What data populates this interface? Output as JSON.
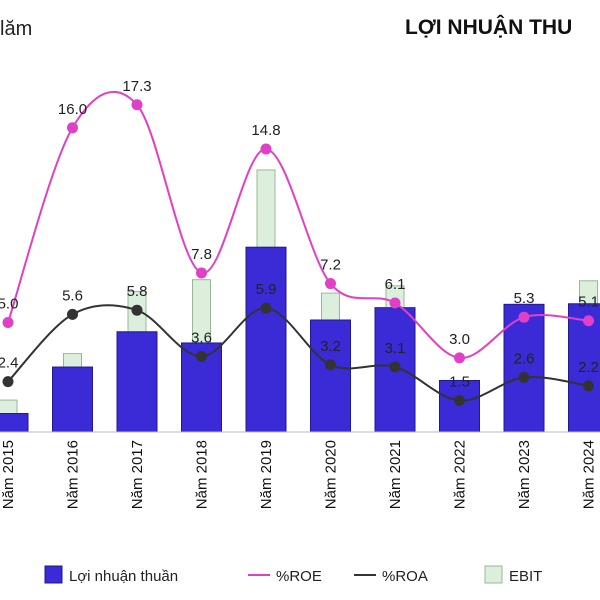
{
  "top_left_text": "lăm",
  "title": "LỢI NHUẬN THU",
  "colors": {
    "net_profit": "#3a2bd6",
    "net_profit_edge": "#1f1a8f",
    "ebit": "#dcefdc",
    "ebit_edge": "#9bb59b",
    "roe": "#e040c8",
    "roa": "#333333"
  },
  "chart_data": {
    "type": "bar",
    "categories": [
      "Năm 2015",
      "Năm 2016",
      "Năm 2017",
      "Năm 2018",
      "Năm 2019",
      "Năm 2020",
      "Năm 2021",
      "Năm 2022",
      "Năm 2023",
      "Năm 2024"
    ],
    "series": [
      {
        "name": "Lợi nhuận thuần",
        "kind": "bar",
        "values": [
          3.3,
          11.6,
          17.9,
          15.9,
          33.0,
          20.0,
          22.2,
          9.2,
          22.8,
          22.9
        ]
      },
      {
        "name": "EBIT",
        "kind": "bar",
        "values": [
          5.7,
          14.0,
          25.1,
          27.2,
          46.8,
          24.8,
          26.1,
          9.2,
          22.8,
          27.0
        ]
      },
      {
        "name": "%ROE",
        "kind": "line",
        "values": [
          5.0,
          16.0,
          17.3,
          7.8,
          14.8,
          7.2,
          6.1,
          3.0,
          5.3,
          5.1
        ],
        "labels": [
          "5.0",
          "16.0",
          "17.3",
          "7.8",
          "14.8",
          "7.2",
          "6.1",
          "3.0",
          "5.3",
          "5.1"
        ]
      },
      {
        "name": "%ROA",
        "kind": "line",
        "values": [
          2.4,
          5.6,
          5.8,
          3.6,
          5.9,
          3.2,
          3.1,
          1.5,
          2.6,
          2.2
        ],
        "labels": [
          "2.4",
          "5.6",
          "5.8",
          "3.6",
          "5.9",
          "3.2",
          "3.1",
          "1.5",
          "2.6",
          "2.2"
        ]
      }
    ],
    "legend": [
      "Lợi nhuận thuần",
      "%ROE",
      "%ROA",
      "EBIT"
    ],
    "legend_position": "bottom",
    "grid": false
  }
}
